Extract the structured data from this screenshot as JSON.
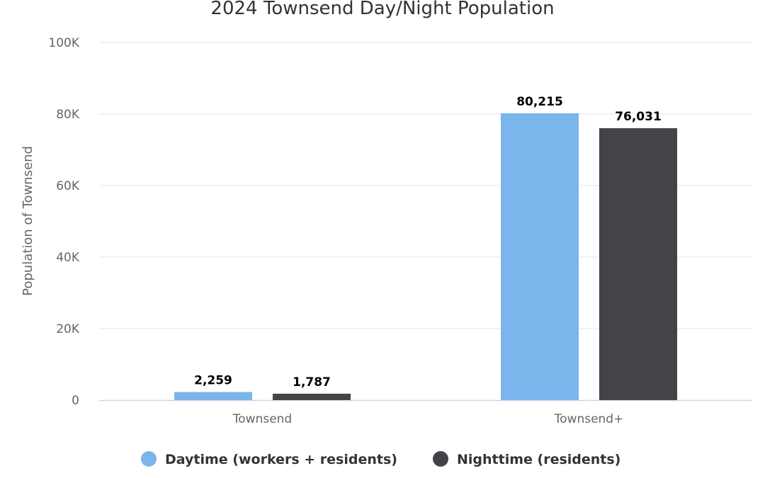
{
  "chart_data": {
    "type": "bar",
    "title": "2024 Townsend Day/Night Population",
    "xlabel": "",
    "ylabel": "Population of Townsend",
    "categories": [
      "Townsend",
      "Townsend+"
    ],
    "series": [
      {
        "name": "Daytime (workers + residents)",
        "values": [
          2259,
          80215
        ],
        "value_labels": [
          "2,259",
          "80,215"
        ],
        "color": "#7cb5ec"
      },
      {
        "name": "Nighttime (residents)",
        "values": [
          1787,
          76031
        ],
        "value_labels": [
          "1,787",
          "76,031"
        ],
        "color": "#434348"
      }
    ],
    "ylim": [
      0,
      100000
    ],
    "yticks": [
      0,
      20000,
      40000,
      60000,
      80000,
      100000
    ],
    "ytick_labels": [
      "0",
      "20K",
      "40K",
      "60K",
      "80K",
      "100K"
    ],
    "grid": true,
    "legend_position": "bottom-center"
  }
}
